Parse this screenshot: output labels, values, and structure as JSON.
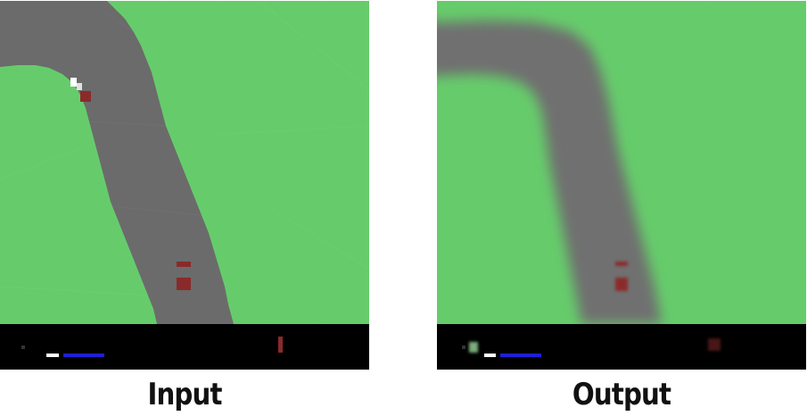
{
  "figure": {
    "input_caption": "Input",
    "output_caption": "Output"
  },
  "colors": {
    "grass": "#66cc6b",
    "road": "#6b6b6b",
    "road_blurred": "#6f6f6f",
    "hud_background": "#000000",
    "car_red": "#8b2a2a",
    "hud_blue": "#1f1fd6",
    "hud_white": "#ffffff",
    "hud_green": "#9bd89b"
  },
  "icons": {
    "car": "car-icon",
    "abs_indicator": "red-bar-icon",
    "speed_indicator": "white-bar-icon",
    "steering_indicator": "blue-bar-icon"
  }
}
